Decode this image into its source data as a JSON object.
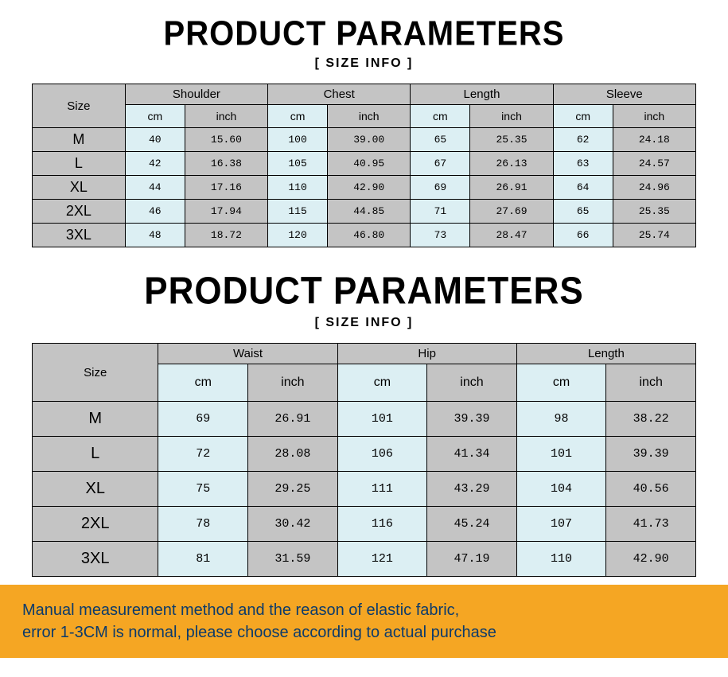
{
  "title_text": "PRODUCT PARAMETERS",
  "subtitle_text": "[ SIZE INFO ]",
  "colors": {
    "header_gray": "#c4c4c4",
    "cm_blue": "#dceff3",
    "border": "#000000",
    "notice_bg": "#f5a623",
    "notice_text": "#0c3b6b",
    "page_bg": "#ffffff"
  },
  "table1": {
    "size_label": "Size",
    "groups": [
      "Shoulder",
      "Chest",
      "Length",
      "Sleeve"
    ],
    "units": {
      "cm": "cm",
      "inch": "inch"
    },
    "col_widths_pct": {
      "size": 14,
      "cm": 9,
      "inch": 12.5
    },
    "rows": [
      {
        "size": "M",
        "shoulder_cm": "40",
        "shoulder_in": "15.60",
        "chest_cm": "100",
        "chest_in": "39.00",
        "length_cm": "65",
        "length_in": "25.35",
        "sleeve_cm": "62",
        "sleeve_in": "24.18"
      },
      {
        "size": "L",
        "shoulder_cm": "42",
        "shoulder_in": "16.38",
        "chest_cm": "105",
        "chest_in": "40.95",
        "length_cm": "67",
        "length_in": "26.13",
        "sleeve_cm": "63",
        "sleeve_in": "24.57"
      },
      {
        "size": "XL",
        "shoulder_cm": "44",
        "shoulder_in": "17.16",
        "chest_cm": "110",
        "chest_in": "42.90",
        "length_cm": "69",
        "length_in": "26.91",
        "sleeve_cm": "64",
        "sleeve_in": "24.96"
      },
      {
        "size": "2XL",
        "shoulder_cm": "46",
        "shoulder_in": "17.94",
        "chest_cm": "115",
        "chest_in": "44.85",
        "length_cm": "71",
        "length_in": "27.69",
        "sleeve_cm": "65",
        "sleeve_in": "25.35"
      },
      {
        "size": "3XL",
        "shoulder_cm": "48",
        "shoulder_in": "18.72",
        "chest_cm": "120",
        "chest_in": "46.80",
        "length_cm": "73",
        "length_in": "28.47",
        "sleeve_cm": "66",
        "sleeve_in": "25.74"
      }
    ]
  },
  "table2": {
    "size_label": "Size",
    "groups": [
      "Waist",
      "Hip",
      "Length"
    ],
    "units": {
      "cm": "cm",
      "inch": "inch"
    },
    "col_widths_pct": {
      "size": 19,
      "data": 13.5
    },
    "rows": [
      {
        "size": "M",
        "waist_cm": "69",
        "waist_in": "26.91",
        "hip_cm": "101",
        "hip_in": "39.39",
        "length_cm": "98",
        "length_in": "38.22"
      },
      {
        "size": "L",
        "waist_cm": "72",
        "waist_in": "28.08",
        "hip_cm": "106",
        "hip_in": "41.34",
        "length_cm": "101",
        "length_in": "39.39"
      },
      {
        "size": "XL",
        "waist_cm": "75",
        "waist_in": "29.25",
        "hip_cm": "111",
        "hip_in": "43.29",
        "length_cm": "104",
        "length_in": "40.56"
      },
      {
        "size": "2XL",
        "waist_cm": "78",
        "waist_in": "30.42",
        "hip_cm": "116",
        "hip_in": "45.24",
        "length_cm": "107",
        "length_in": "41.73"
      },
      {
        "size": "3XL",
        "waist_cm": "81",
        "waist_in": "31.59",
        "hip_cm": "121",
        "hip_in": "47.19",
        "length_cm": "110",
        "length_in": "42.90"
      }
    ]
  },
  "notice_line1": "Manual measurement method and the reason of elastic fabric,",
  "notice_line2": "error 1-3CM is normal, please choose according to actual purchase"
}
